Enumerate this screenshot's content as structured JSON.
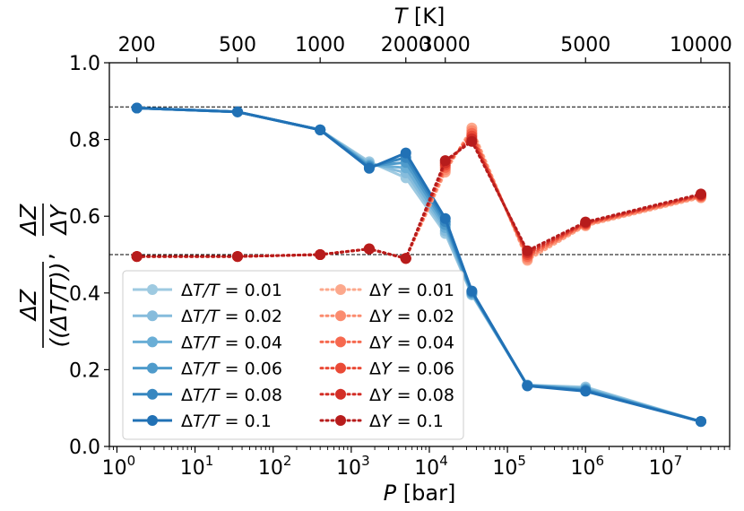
{
  "chart_data": {
    "type": "line",
    "x_axis": {
      "label_italic": "P",
      "label_rest": " [bar]",
      "scale": "log",
      "range": [
        0.8,
        70000000
      ],
      "ticks": [
        {
          "value": 1,
          "base": "10",
          "exp": "0"
        },
        {
          "value": 10,
          "base": "10",
          "exp": "1"
        },
        {
          "value": 100,
          "base": "10",
          "exp": "2"
        },
        {
          "value": 1000,
          "base": "10",
          "exp": "3"
        },
        {
          "value": 10000,
          "base": "10",
          "exp": "4"
        },
        {
          "value": 100000,
          "base": "10",
          "exp": "5"
        },
        {
          "value": 1000000,
          "base": "10",
          "exp": "6"
        },
        {
          "value": 10000000,
          "base": "10",
          "exp": "7"
        }
      ]
    },
    "top_axis": {
      "label_italic": "T",
      "label_rest": " [K]",
      "ticks": [
        {
          "p": 1.8,
          "label": "200"
        },
        {
          "p": 35,
          "label": "500"
        },
        {
          "p": 400,
          "label": "1000"
        },
        {
          "p": 5000,
          "label": "2000"
        },
        {
          "p": 16000,
          "label": "3000"
        },
        {
          "p": 1000000,
          "label": "5000"
        },
        {
          "p": 30000000,
          "label": "10000"
        }
      ]
    },
    "y_axis": {
      "range": [
        0.0,
        1.0
      ],
      "ticks": [
        "0.0",
        "0.2",
        "0.4",
        "0.6",
        "0.8",
        "1.0"
      ],
      "label_left": "ΔZ / (ΔT/T)",
      "label_right": "ΔZ / ΔY"
    },
    "reference_lines": [
      0.885,
      0.5
    ],
    "x": [
      1.8,
      35,
      400,
      1700,
      5000,
      16000,
      35000,
      180000,
      1000000,
      30000000
    ],
    "series": [
      {
        "name": "ΔT/T = 0.01",
        "legend_lhs": "ΔT/T",
        "legend_rhs": "0.01",
        "color": "#9ecae1",
        "style": "solid",
        "values": [
          0.882,
          0.872,
          0.825,
          0.742,
          0.7,
          0.555,
          0.395,
          0.16,
          0.155,
          0.065
        ]
      },
      {
        "name": "ΔT/T = 0.02",
        "legend_lhs": "ΔT/T",
        "legend_rhs": "0.02",
        "color": "#86bcdc",
        "style": "solid",
        "values": [
          0.882,
          0.872,
          0.825,
          0.738,
          0.713,
          0.562,
          0.397,
          0.16,
          0.152,
          0.065
        ]
      },
      {
        "name": "ΔT/T = 0.04",
        "legend_lhs": "ΔT/T",
        "legend_rhs": "0.04",
        "color": "#6aaed6",
        "style": "solid",
        "values": [
          0.882,
          0.872,
          0.825,
          0.734,
          0.726,
          0.57,
          0.399,
          0.159,
          0.15,
          0.065
        ]
      },
      {
        "name": "ΔT/T = 0.06",
        "legend_lhs": "ΔT/T",
        "legend_rhs": "0.06",
        "color": "#4f9bcb",
        "style": "solid",
        "values": [
          0.882,
          0.872,
          0.825,
          0.731,
          0.74,
          0.578,
          0.401,
          0.159,
          0.148,
          0.065
        ]
      },
      {
        "name": "ΔT/T = 0.08",
        "legend_lhs": "ΔT/T",
        "legend_rhs": "0.08",
        "color": "#3787c0",
        "style": "solid",
        "values": [
          0.882,
          0.872,
          0.825,
          0.728,
          0.753,
          0.586,
          0.403,
          0.158,
          0.146,
          0.065
        ]
      },
      {
        "name": "ΔT/T = 0.1",
        "legend_lhs": "ΔT/T",
        "legend_rhs": "0.1",
        "color": "#2171b5",
        "style": "solid",
        "values": [
          0.882,
          0.872,
          0.825,
          0.725,
          0.765,
          0.594,
          0.405,
          0.158,
          0.144,
          0.065
        ]
      },
      {
        "name": "ΔY = 0.01",
        "legend_lhs": "ΔY",
        "legend_rhs": "0.01",
        "color": "#fca88c",
        "style": "dotted",
        "values": [
          0.495,
          0.495,
          0.5,
          0.515,
          0.49,
          0.715,
          0.83,
          0.485,
          0.575,
          0.648
        ]
      },
      {
        "name": "ΔY = 0.02",
        "legend_lhs": "ΔY",
        "legend_rhs": "0.02",
        "color": "#fb8c6f",
        "style": "dotted",
        "values": [
          0.495,
          0.495,
          0.5,
          0.515,
          0.49,
          0.721,
          0.823,
          0.49,
          0.577,
          0.65
        ]
      },
      {
        "name": "ΔY = 0.04",
        "legend_lhs": "ΔY",
        "legend_rhs": "0.04",
        "color": "#f6694f",
        "style": "dotted",
        "values": [
          0.495,
          0.495,
          0.5,
          0.515,
          0.49,
          0.727,
          0.816,
          0.495,
          0.579,
          0.652
        ]
      },
      {
        "name": "ΔY = 0.06",
        "legend_lhs": "ΔY",
        "legend_rhs": "0.06",
        "color": "#ea4a36",
        "style": "dotted",
        "values": [
          0.495,
          0.495,
          0.5,
          0.515,
          0.49,
          0.733,
          0.809,
          0.5,
          0.581,
          0.654
        ]
      },
      {
        "name": "ΔY = 0.08",
        "legend_lhs": "ΔY",
        "legend_rhs": "0.08",
        "color": "#d32f27",
        "style": "dotted",
        "values": [
          0.495,
          0.495,
          0.5,
          0.515,
          0.49,
          0.739,
          0.802,
          0.505,
          0.583,
          0.656
        ]
      },
      {
        "name": "ΔY = 0.1",
        "legend_lhs": "ΔY",
        "legend_rhs": "0.1",
        "color": "#b71c1c",
        "style": "dotted",
        "values": [
          0.495,
          0.495,
          0.5,
          0.515,
          0.49,
          0.745,
          0.795,
          0.51,
          0.585,
          0.658
        ]
      }
    ],
    "legend_position": "lower-left",
    "grid": false
  }
}
